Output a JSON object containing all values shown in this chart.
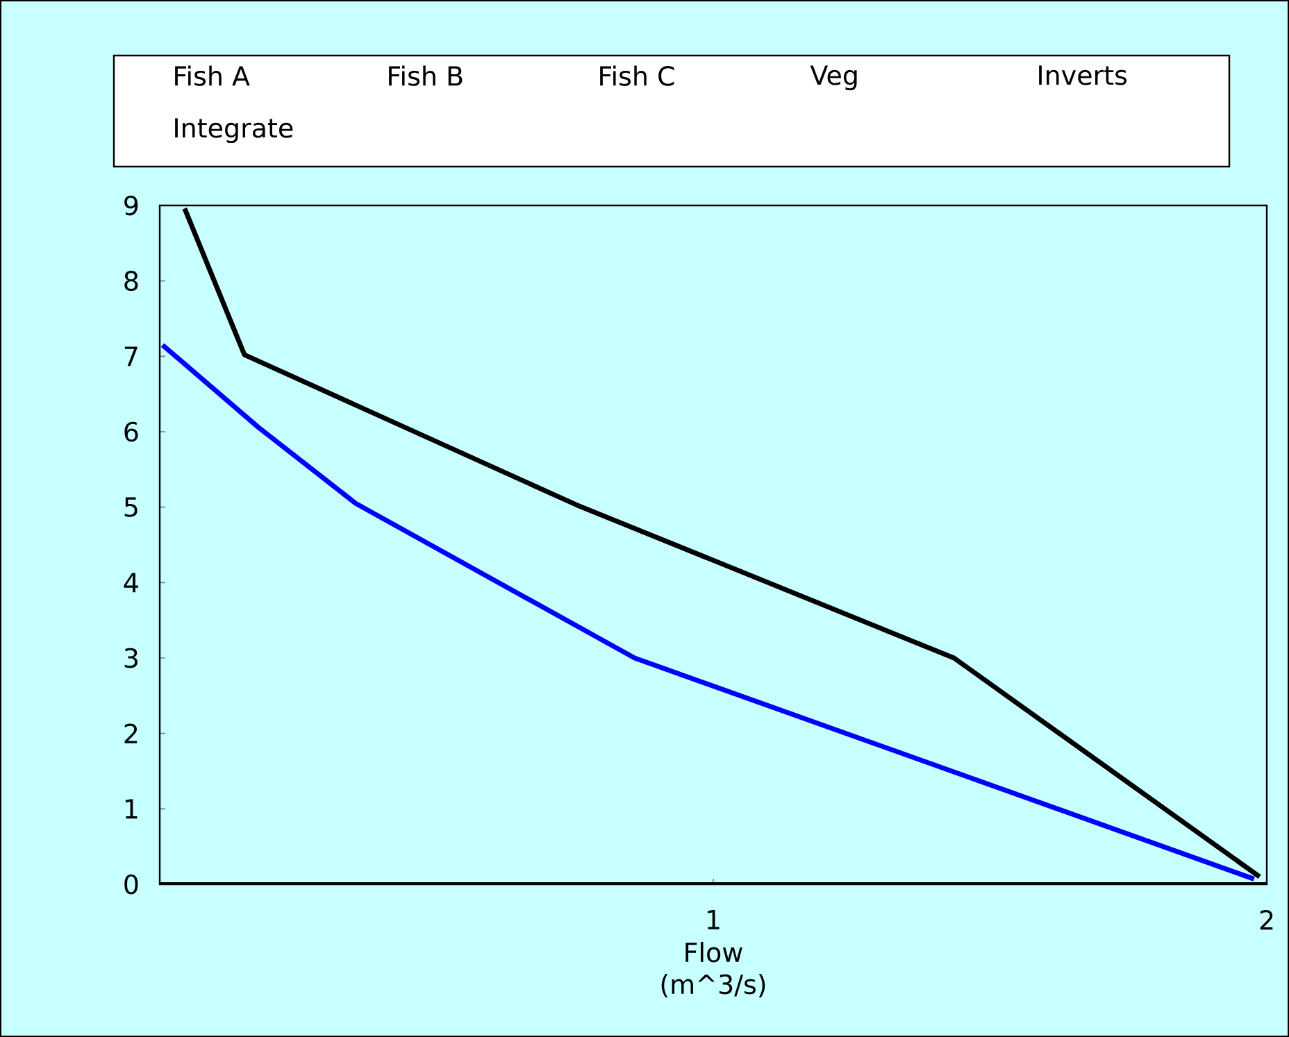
{
  "chart_data": {
    "type": "line",
    "xlabel": "Flow (m^3/s)",
    "annotations": [
      "Fish A",
      "Fish B",
      "Fish C",
      "Veg",
      "Inverts",
      "Integrate"
    ],
    "xlim": [
      0,
      2
    ],
    "xticks": [
      1,
      2
    ],
    "ylim": [
      0,
      9
    ],
    "yticks": [
      0,
      1,
      2,
      3,
      4,
      5,
      6,
      7,
      8,
      9
    ],
    "grid": false,
    "marker": "none",
    "line_style": "solid",
    "series": [
      {
        "color": "#000000",
        "x": [
          0.045,
          0.153,
          0.753,
          1.435,
          1.987
        ],
        "values": [
          8.96,
          7.02,
          5.03,
          3.0,
          0.1
        ]
      },
      {
        "color": "#0000ff",
        "x": [
          0.005,
          0.178,
          0.354,
          0.858,
          1.977
        ],
        "values": [
          7.15,
          6.06,
          5.05,
          3.0,
          0.07
        ]
      }
    ]
  }
}
